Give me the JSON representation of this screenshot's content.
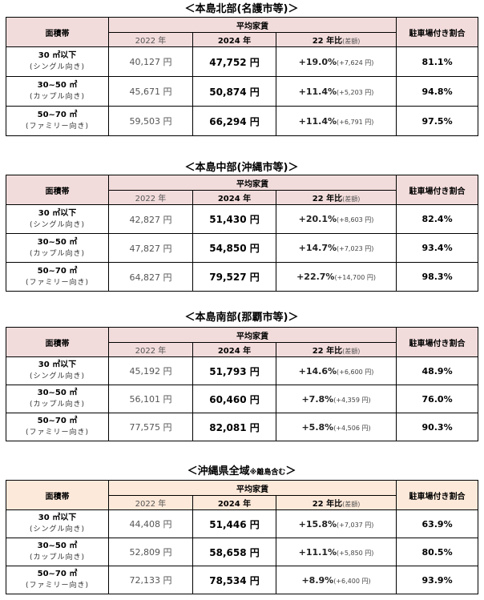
{
  "headers": {
    "area": "面積帯",
    "avg_rent": "平均家賃",
    "y2022": "2022 年",
    "y2024": "2024 年",
    "ratio": "22 年比",
    "ratio_note": "(差額)",
    "parking": "駐車場付き割合"
  },
  "tables": [
    {
      "title": "＜本島北部(名護市等)＞",
      "title_note": "",
      "rows": [
        {
          "band": "30 ㎡以下",
          "type": "(シングル向き)",
          "y2022": "40,127 円",
          "y2024": "47,752 円",
          "pct": "+19.0%",
          "diff": "(+7,624 円)",
          "parking": "81.1%"
        },
        {
          "band": "30~50 ㎡",
          "type": "(カップル向き)",
          "y2022": "45,671 円",
          "y2024": "50,874 円",
          "pct": "+11.4%",
          "diff": "(+5,203 円)",
          "parking": "94.8%"
        },
        {
          "band": "50~70 ㎡",
          "type": "(ファミリー向き)",
          "y2022": "59,503 円",
          "y2024": "66,294 円",
          "pct": "+11.4%",
          "diff": "(+6,791 円)",
          "parking": "97.5%"
        }
      ]
    },
    {
      "title": "＜本島中部(沖縄市等)＞",
      "title_note": "",
      "rows": [
        {
          "band": "30 ㎡以下",
          "type": "(シングル向き)",
          "y2022": "42,827 円",
          "y2024": "51,430 円",
          "pct": "+20.1%",
          "diff": "(+8,603 円)",
          "parking": "82.4%"
        },
        {
          "band": "30~50 ㎡",
          "type": "(カップル向き)",
          "y2022": "47,827 円",
          "y2024": "54,850 円",
          "pct": "+14.7%",
          "diff": "(+7,023 円)",
          "parking": "93.4%"
        },
        {
          "band": "50~70 ㎡",
          "type": "(ファミリー向き)",
          "y2022": "64,827 円",
          "y2024": "79,527 円",
          "pct": "+22.7%",
          "diff": "(+14,700 円)",
          "parking": "98.3%"
        }
      ]
    },
    {
      "title": "＜本島南部(那覇市等)＞",
      "title_note": "",
      "rows": [
        {
          "band": "30 ㎡以下",
          "type": "(シングル向き)",
          "y2022": "45,192 円",
          "y2024": "51,793 円",
          "pct": "+14.6%",
          "diff": "(+6,600 円)",
          "parking": "48.9%"
        },
        {
          "band": "30~50 ㎡",
          "type": "(カップル向き)",
          "y2022": "56,101 円",
          "y2024": "60,460 円",
          "pct": "+7.8%",
          "diff": "(+4,359 円)",
          "parking": "76.0%"
        },
        {
          "band": "50~70 ㎡",
          "type": "(ファミリー向き)",
          "y2022": "77,575 円",
          "y2024": "82,081 円",
          "pct": "+5.8%",
          "diff": "(+4,506 円)",
          "parking": "90.3%"
        }
      ]
    },
    {
      "title": "＜沖縄県全域",
      "title_note": "※離島含む",
      "title_end": "＞",
      "rows": [
        {
          "band": "30 ㎡以下",
          "type": "(シングル向き)",
          "y2022": "44,408 円",
          "y2024": "51,446 円",
          "pct": "+15.8%",
          "diff": "(+7,037 円)",
          "parking": "63.9%"
        },
        {
          "band": "30~50 ㎡",
          "type": "(カップル向き)",
          "y2022": "52,809 円",
          "y2024": "58,658 円",
          "pct": "+11.1%",
          "diff": "(+5,850 円)",
          "parking": "80.5%"
        },
        {
          "band": "50~70 ㎡",
          "type": "(ファミリー向き)",
          "y2022": "72,133 円",
          "y2024": "78,534 円",
          "pct": "+8.9%",
          "diff": "(+6,400 円)",
          "parking": "93.9%"
        }
      ]
    }
  ]
}
